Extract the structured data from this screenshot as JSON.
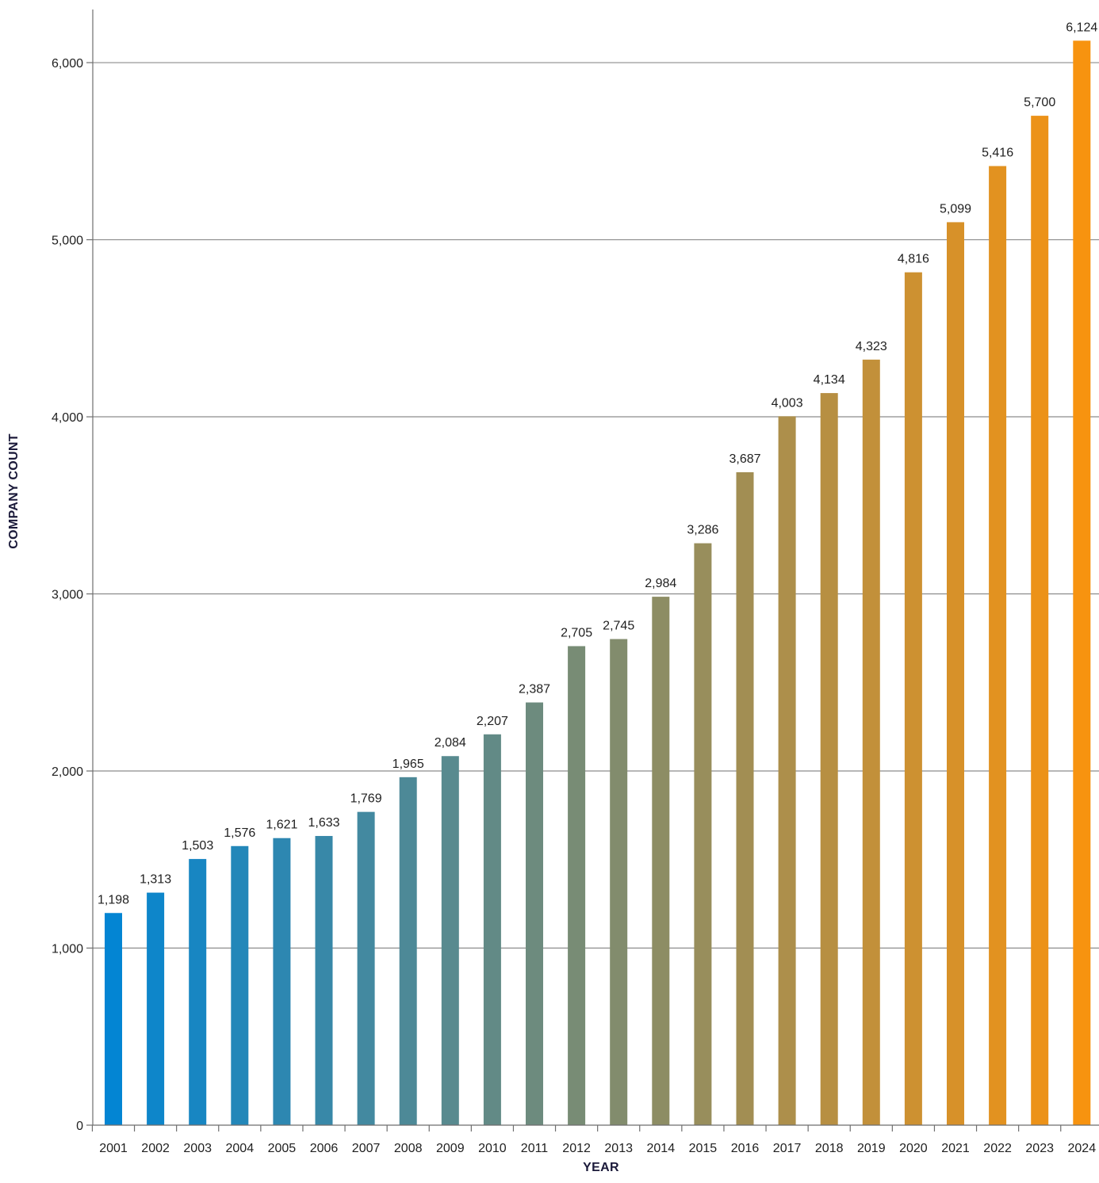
{
  "chart_data": {
    "type": "bar",
    "title": "",
    "xlabel": "YEAR",
    "ylabel": "COMPANY COUNT",
    "categories": [
      "2001",
      "2002",
      "2003",
      "2004",
      "2005",
      "2006",
      "2007",
      "2008",
      "2009",
      "2010",
      "2011",
      "2012",
      "2013",
      "2014",
      "2015",
      "2016",
      "2017",
      "2018",
      "2019",
      "2020",
      "2021",
      "2022",
      "2023",
      "2024"
    ],
    "values": [
      1198,
      1313,
      1503,
      1576,
      1621,
      1633,
      1769,
      1965,
      2084,
      2207,
      2387,
      2705,
      2745,
      2984,
      3286,
      3687,
      4003,
      4134,
      4323,
      4816,
      5099,
      5416,
      5700,
      6124
    ],
    "value_labels": [
      "1,198",
      "1,313",
      "1,503",
      "1,576",
      "1,621",
      "1,633",
      "1,769",
      "1,965",
      "2,084",
      "2,207",
      "2,387",
      "2,705",
      "2,745",
      "2,984",
      "3,286",
      "3,687",
      "4,003",
      "4,134",
      "4,323",
      "4,816",
      "5,099",
      "5,416",
      "5,700",
      "6,124"
    ],
    "ylim": [
      0,
      6300
    ],
    "yticks": [
      0,
      1000,
      2000,
      3000,
      4000,
      5000,
      6000
    ],
    "ytick_labels": [
      "0",
      "1,000",
      "2,000",
      "3,000",
      "4,000",
      "5,000",
      "6,000"
    ],
    "grid": true,
    "legend": "none",
    "colors": {
      "bar_start": "#0385d3",
      "bar_end": "#f7930f",
      "gridline": "#8c8c8c",
      "axis": "#6e6e6e",
      "axis_title": "#1b1a3a",
      "text": "#1f1f1f"
    }
  }
}
